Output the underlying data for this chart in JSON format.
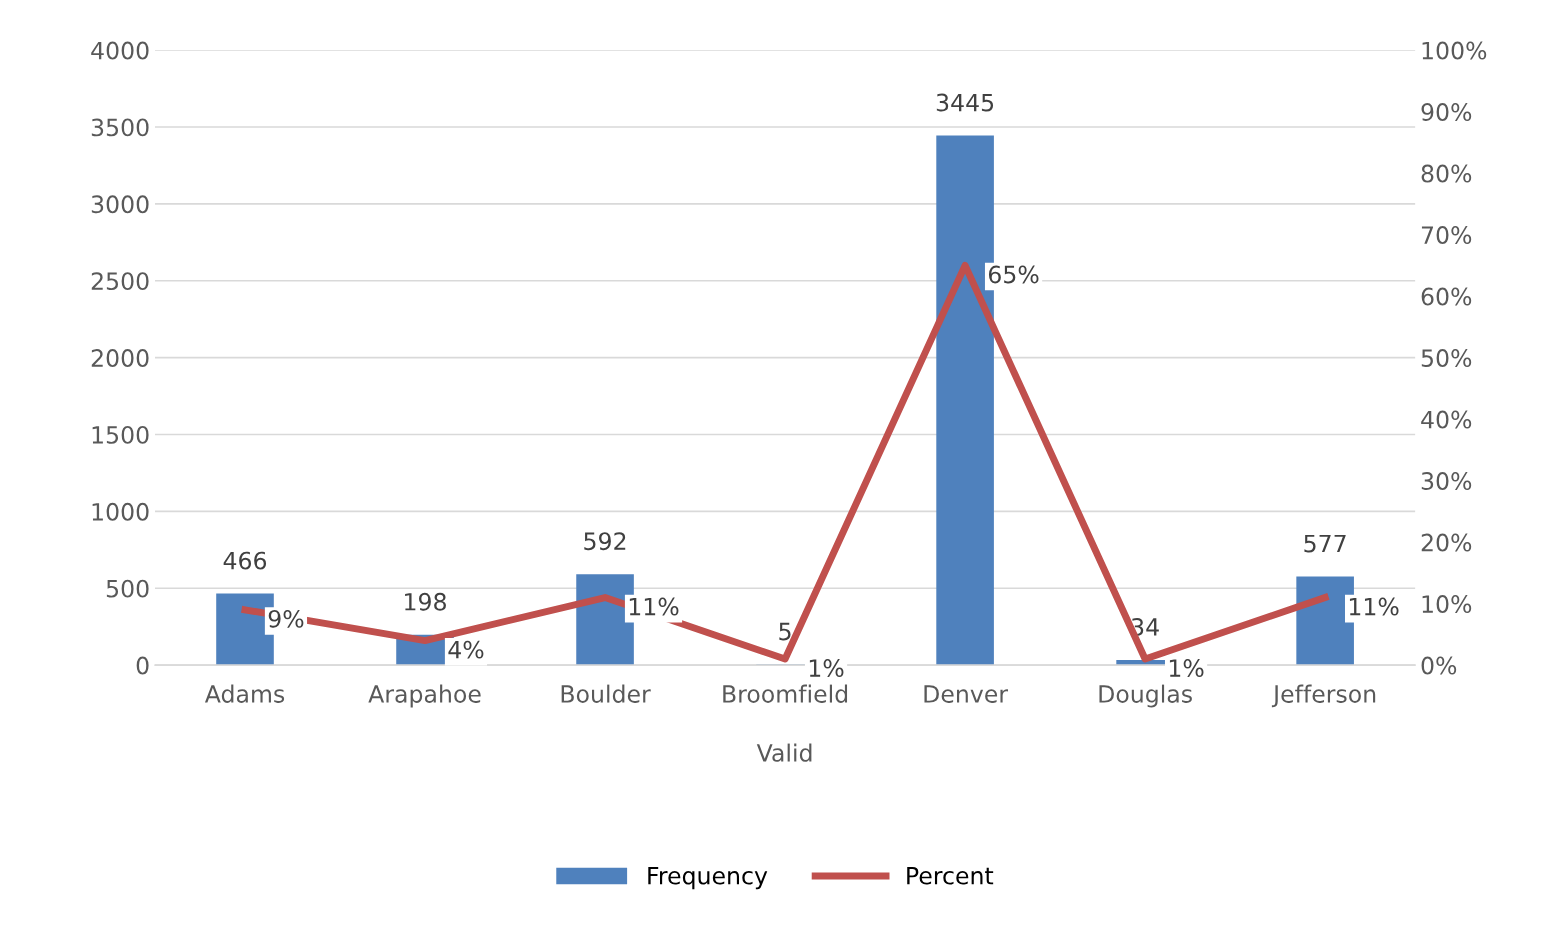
{
  "chart_data": {
    "type": "bar",
    "categories": [
      "Adams",
      "Arapahoe",
      "Boulder",
      "Broomfield",
      "Denver",
      "Douglas",
      "Jefferson"
    ],
    "xlabel": "Valid",
    "series": [
      {
        "name": "Frequency",
        "color": "#4f81bd",
        "values": [
          466,
          198,
          592,
          5,
          3445,
          34,
          577
        ]
      },
      {
        "name": "Percent",
        "type": "line",
        "axis": "y2",
        "color": "#c0504d",
        "values": [
          9,
          4,
          11,
          1,
          65,
          1,
          11
        ],
        "value_labels": [
          "9%",
          "4%",
          "11%",
          "1%",
          "65%",
          "1%",
          "11%"
        ]
      }
    ],
    "ylim": [
      0,
      4000
    ],
    "yticks": [
      0,
      500,
      1000,
      1500,
      2000,
      2500,
      3000,
      3500,
      4000
    ],
    "y2lim": [
      0,
      100
    ],
    "y2ticks": [
      {
        "value": 0,
        "label": "0%"
      },
      {
        "value": 10,
        "label": "10%"
      },
      {
        "value": 20,
        "label": "20%"
      },
      {
        "value": 30,
        "label": "30%"
      },
      {
        "value": 40,
        "label": "40%"
      },
      {
        "value": 50,
        "label": "50%"
      },
      {
        "value": 60,
        "label": "60%"
      },
      {
        "value": 70,
        "label": "70%"
      },
      {
        "value": 80,
        "label": "80%"
      },
      {
        "value": 90,
        "label": "90%"
      },
      {
        "value": 100,
        "label": "100%"
      }
    ],
    "grid": "y",
    "legend": "bottom",
    "data_labels": true,
    "marker": "none",
    "line_style": "solid"
  }
}
